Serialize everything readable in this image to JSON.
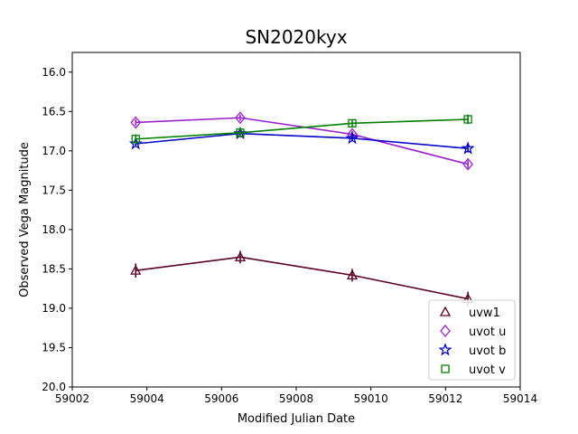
{
  "chart_data": {
    "type": "line",
    "title": "SN2020kyx",
    "xlabel": "Modified Julian Date",
    "ylabel": "Observed Vega Magnitude",
    "xlim": [
      59002,
      59014
    ],
    "ylim": [
      20.0,
      15.75
    ],
    "y_inverted": true,
    "grid": false,
    "legend_position": "lower-right",
    "x_ticks": [
      59002,
      59004,
      59006,
      59008,
      59010,
      59012,
      59014
    ],
    "y_ticks": [
      16.0,
      16.5,
      17.0,
      17.5,
      18.0,
      18.5,
      19.0,
      19.5,
      20.0
    ],
    "series": [
      {
        "name": "uvw1",
        "color": "#5c0028",
        "marker": "triangle",
        "x": [
          59003.7,
          59006.5,
          59009.5,
          59012.6
        ],
        "y": [
          18.52,
          18.35,
          18.58,
          18.88
        ],
        "err": [
          0.09,
          0.08,
          0.08,
          0.09
        ]
      },
      {
        "name": "uvot u",
        "color": "#9b1fd1",
        "marker": "diamond",
        "x": [
          59003.7,
          59006.5,
          59009.5,
          59012.6
        ],
        "y": [
          16.64,
          16.58,
          16.79,
          17.17
        ],
        "err": [
          0.04,
          0.04,
          0.04,
          0.05
        ]
      },
      {
        "name": "uvot b",
        "color": "#0000cc",
        "marker": "star",
        "x": [
          59003.7,
          59006.5,
          59009.5,
          59012.6
        ],
        "y": [
          16.91,
          16.78,
          16.84,
          16.97
        ],
        "err": [
          0.04,
          0.04,
          0.04,
          0.05
        ]
      },
      {
        "name": "uvot v",
        "color": "#008000",
        "marker": "square",
        "x": [
          59003.7,
          59006.5,
          59009.5,
          59012.6
        ],
        "y": [
          16.85,
          16.77,
          16.65,
          16.6
        ],
        "err": [
          0.06,
          0.06,
          0.05,
          0.06
        ]
      }
    ]
  }
}
